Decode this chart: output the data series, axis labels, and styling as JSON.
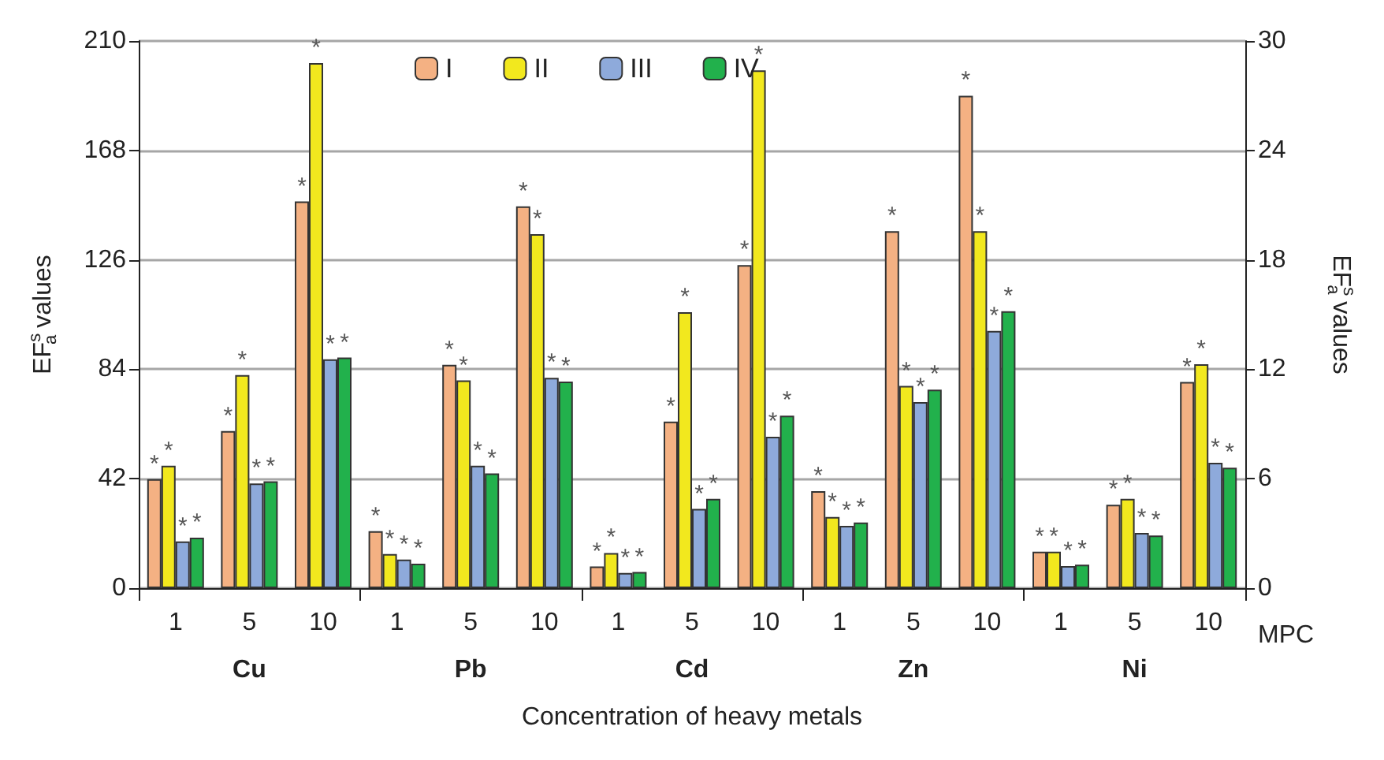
{
  "chart_data": {
    "type": "bar",
    "xlabel": "Concentration of heavy metals",
    "ylabel": "EF$^{s}$$_{a}$ values",
    "y2label": "EF$^{s}$$_{a}$ values",
    "categories": [
      "1",
      "5",
      "10",
      "1",
      "5",
      "10",
      "1",
      "5",
      "10",
      "1",
      "5",
      "10",
      "1",
      "5",
      "10"
    ],
    "annotations": [
      "Cu",
      "Pb",
      "Cd",
      "Zn",
      "Ni",
      "MPC"
    ],
    "series": [
      {
        "name": "I",
        "color": "#f4b183",
        "values": [
          41.8,
          60.3,
          148.4,
          21.9,
          85.7,
          146.5,
          8.3,
          63.9,
          124,
          37.2,
          137,
          189,
          14,
          32,
          79.1
        ],
        "value_labels": [
          "*",
          "*",
          "*",
          "*",
          "*",
          "*",
          "*",
          "*",
          "*",
          "*",
          "*",
          "*",
          "*",
          "*",
          "*"
        ]
      },
      {
        "name": "II",
        "color": "#f2e81e",
        "values": [
          47,
          81.8,
          201.5,
          13.1,
          79.7,
          135.9,
          13.5,
          105.9,
          198.7,
          27.3,
          77.6,
          137,
          14,
          34.3,
          85.9
        ],
        "value_labels": [
          "*",
          "*",
          "*",
          "*",
          "*",
          "*",
          "*",
          "*",
          "*",
          "*",
          "*",
          "*",
          "*",
          "*",
          "*"
        ]
      },
      {
        "name": "III",
        "color": "#8eaadb",
        "values": [
          17.9,
          40.2,
          87.8,
          11,
          47,
          80.7,
          5.8,
          30.4,
          58.1,
          23.9,
          71.4,
          98.7,
          8.5,
          21.2,
          48.1
        ],
        "value_labels": [
          "*",
          "*",
          "*",
          "*",
          "*",
          "*",
          "*",
          "*",
          "*",
          "*",
          "*",
          "*",
          "*",
          "*",
          "*"
        ]
      },
      {
        "name": "IV",
        "color": "#22b14c",
        "values": [
          19.4,
          41,
          88.5,
          9.4,
          44,
          79.3,
          6.2,
          34.3,
          66.2,
          25.2,
          76.2,
          106.3,
          9,
          20.2,
          46.2
        ],
        "value_labels": [
          "*",
          "*",
          "*",
          "*",
          "*",
          "*",
          "*",
          "*",
          "*",
          "*",
          "*",
          "*",
          "*",
          "*",
          "*"
        ]
      }
    ],
    "ylim": [
      0,
      210
    ],
    "yticks": [
      0,
      42,
      84,
      126,
      168,
      210
    ],
    "y2lim": [
      0,
      30
    ],
    "y2ticks": [
      0,
      6,
      12,
      18,
      24,
      30
    ],
    "grid": "y",
    "legend": "top"
  }
}
